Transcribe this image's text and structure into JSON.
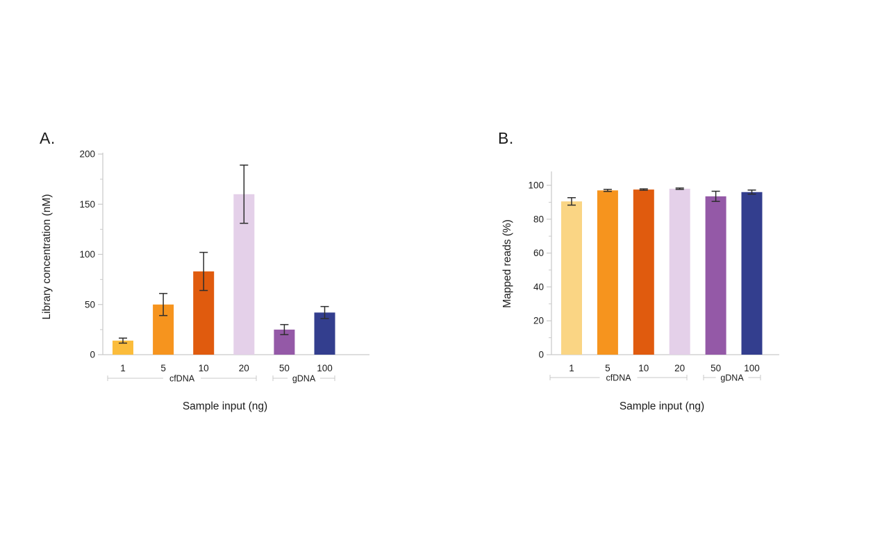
{
  "figure": {
    "background": "#ffffff",
    "text_color": "#1a1a1a",
    "axis_color": "#c9c9c9",
    "bracket_color": "#c8c8c8",
    "errorbar_color": "#2d2d2d"
  },
  "chart_data": [
    {
      "type": "bar",
      "panel_label": "A.",
      "title": "",
      "xlabel": "Sample input (ng)",
      "ylabel": "Library concentration (nM)",
      "categories": [
        "1",
        "5",
        "10",
        "20",
        "50",
        "100"
      ],
      "values": [
        14,
        50,
        83,
        160,
        25,
        42
      ],
      "errors": [
        2.5,
        11,
        19,
        29,
        5,
        6
      ],
      "bar_colors": [
        "#fbbc3b",
        "#f6941e",
        "#e05b0e",
        "#e4d0e9",
        "#9459a7",
        "#333e8e"
      ],
      "ylim": [
        0,
        200
      ],
      "y_major_ticks": [
        0,
        50,
        100,
        150,
        200
      ],
      "y_minor_ticks": [
        25,
        75,
        125,
        175
      ],
      "grid": false,
      "legend": "none",
      "groups": [
        {
          "label": "cfDNA",
          "from": 0,
          "to": 3
        },
        {
          "label": "gDNA",
          "from": 4,
          "to": 5
        }
      ]
    },
    {
      "type": "bar",
      "panel_label": "B.",
      "title": "",
      "xlabel": "Sample input (ng)",
      "ylabel": "Mapped reads (%)",
      "categories": [
        "1",
        "5",
        "10",
        "20",
        "50",
        "100"
      ],
      "values": [
        90.5,
        97,
        97.5,
        98,
        93.5,
        96
      ],
      "errors": [
        2.2,
        0.6,
        0.4,
        0.4,
        3,
        1.2
      ],
      "bar_colors": [
        "#fad584",
        "#f6941e",
        "#e05b0e",
        "#e4d0e9",
        "#9459a7",
        "#333e8e"
      ],
      "ylim": [
        0,
        100
      ],
      "y_major_ticks": [
        0,
        20,
        40,
        60,
        80,
        100
      ],
      "y_minor_ticks": [
        10,
        30,
        50,
        70,
        90
      ],
      "grid": false,
      "legend": "none",
      "groups": [
        {
          "label": "cfDNA",
          "from": 0,
          "to": 3
        },
        {
          "label": "gDNA",
          "from": 4,
          "to": 5
        }
      ]
    }
  ]
}
